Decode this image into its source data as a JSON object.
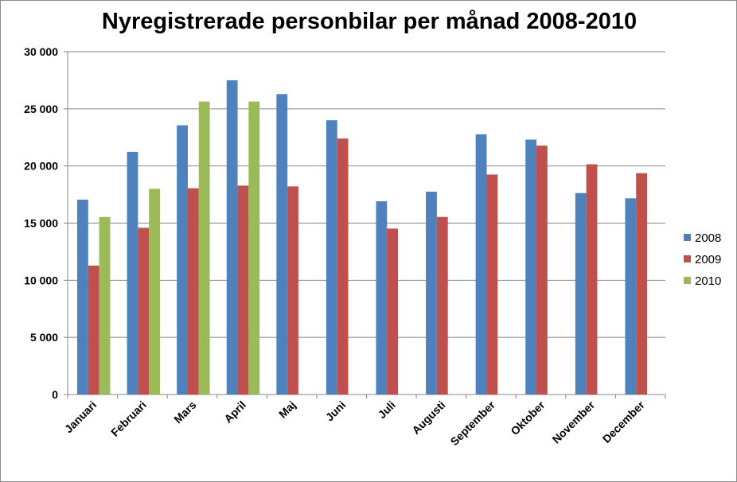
{
  "chart_data": {
    "type": "bar",
    "title": "Nyregistrerade personbilar per månad 2008-2010",
    "xlabel": "",
    "ylabel": "",
    "ylim": [
      0,
      30000
    ],
    "yticks": [
      0,
      5000,
      10000,
      15000,
      20000,
      25000,
      30000
    ],
    "ytick_labels": [
      "0",
      "5 000",
      "10 000",
      "15 000",
      "20 000",
      "25 000",
      "30 000"
    ],
    "grid": true,
    "legend_position": "right",
    "categories": [
      "Januari",
      "Februari",
      "Mars",
      "April",
      "Maj",
      "Juni",
      "Juli",
      "Augusti",
      "September",
      "Oktober",
      "November",
      "December"
    ],
    "series": [
      {
        "name": "2008",
        "color": "#4f81bd",
        "values": [
          17050,
          21240,
          23560,
          27500,
          26290,
          24000,
          16910,
          17750,
          22770,
          22310,
          17630,
          17170
        ]
      },
      {
        "name": "2009",
        "color": "#c0504d",
        "values": [
          11280,
          14590,
          18050,
          18280,
          18210,
          22400,
          14520,
          15540,
          19250,
          21780,
          20150,
          19370
        ]
      },
      {
        "name": "2010",
        "color": "#9bbb59",
        "values": [
          15540,
          18000,
          25640,
          25640,
          null,
          null,
          null,
          null,
          null,
          null,
          null,
          null
        ]
      }
    ]
  }
}
